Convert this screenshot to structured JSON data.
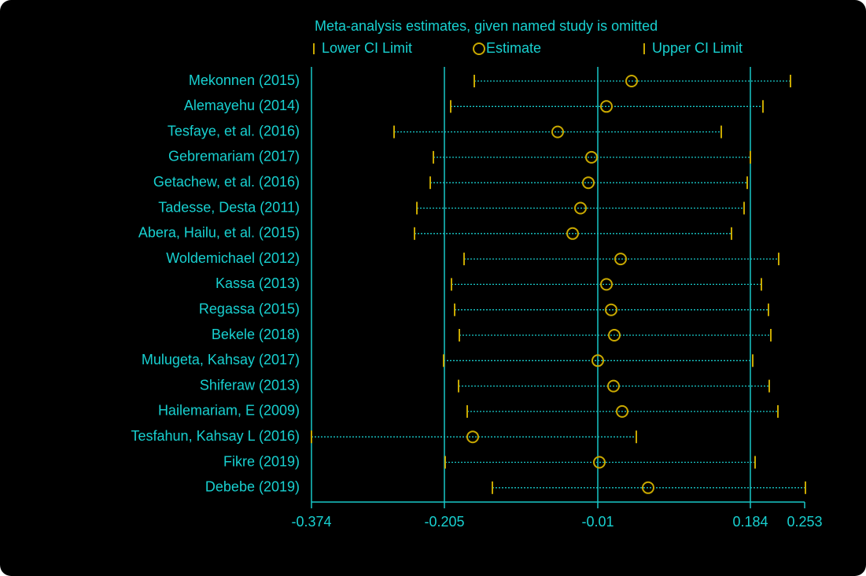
{
  "chart_data": {
    "type": "influence",
    "title": "Meta-analysis estimates, given named study is omitted",
    "categories": [
      "Mekonnen (2015)",
      "Alemayehu (2014)",
      "Tesfaye, et al. (2016)",
      "Gebremariam (2017)",
      "Getachew, et al. (2016)",
      "Tadesse, Desta (2011)",
      "Abera, Hailu, et al. (2015)",
      "Woldemichael (2012)",
      "Kassa (2013)",
      "Regassa (2015)",
      "Bekele (2018)",
      "Mulugeta, Kahsay (2017)",
      "Shiferaw (2013)",
      "Hailemariam, E (2009)",
      "Tesfahun, Kahsay L (2016)",
      "Fikre (2019)",
      "Debebe (2019)"
    ],
    "series": [
      {
        "name": "Lower CI Limit",
        "color": "#c8a800",
        "values": [
          -0.167,
          -0.197,
          -0.269,
          -0.219,
          -0.223,
          -0.24,
          -0.243,
          -0.18,
          -0.196,
          -0.192,
          -0.186,
          -0.206,
          -0.187,
          -0.176,
          -0.374,
          -0.204,
          -0.144
        ]
      },
      {
        "name": "Estimate",
        "color": "#c8a800",
        "values": [
          0.033,
          0.001,
          -0.061,
          -0.018,
          -0.022,
          -0.032,
          -0.042,
          0.019,
          0.001,
          0.007,
          0.011,
          -0.01,
          0.01,
          0.021,
          -0.169,
          -0.008,
          0.054
        ]
      },
      {
        "name": "Upper CI Limit",
        "color": "#c8a800",
        "values": [
          0.235,
          0.2,
          0.147,
          0.184,
          0.18,
          0.176,
          0.16,
          0.22,
          0.198,
          0.207,
          0.21,
          0.187,
          0.208,
          0.219,
          0.039,
          0.19,
          0.254
        ]
      }
    ],
    "line_color": "#18c8c8",
    "xlim": [
      -0.374,
      0.253
    ],
    "xticks": [
      -0.374,
      -0.205,
      -0.01,
      0.184,
      0.253
    ]
  }
}
